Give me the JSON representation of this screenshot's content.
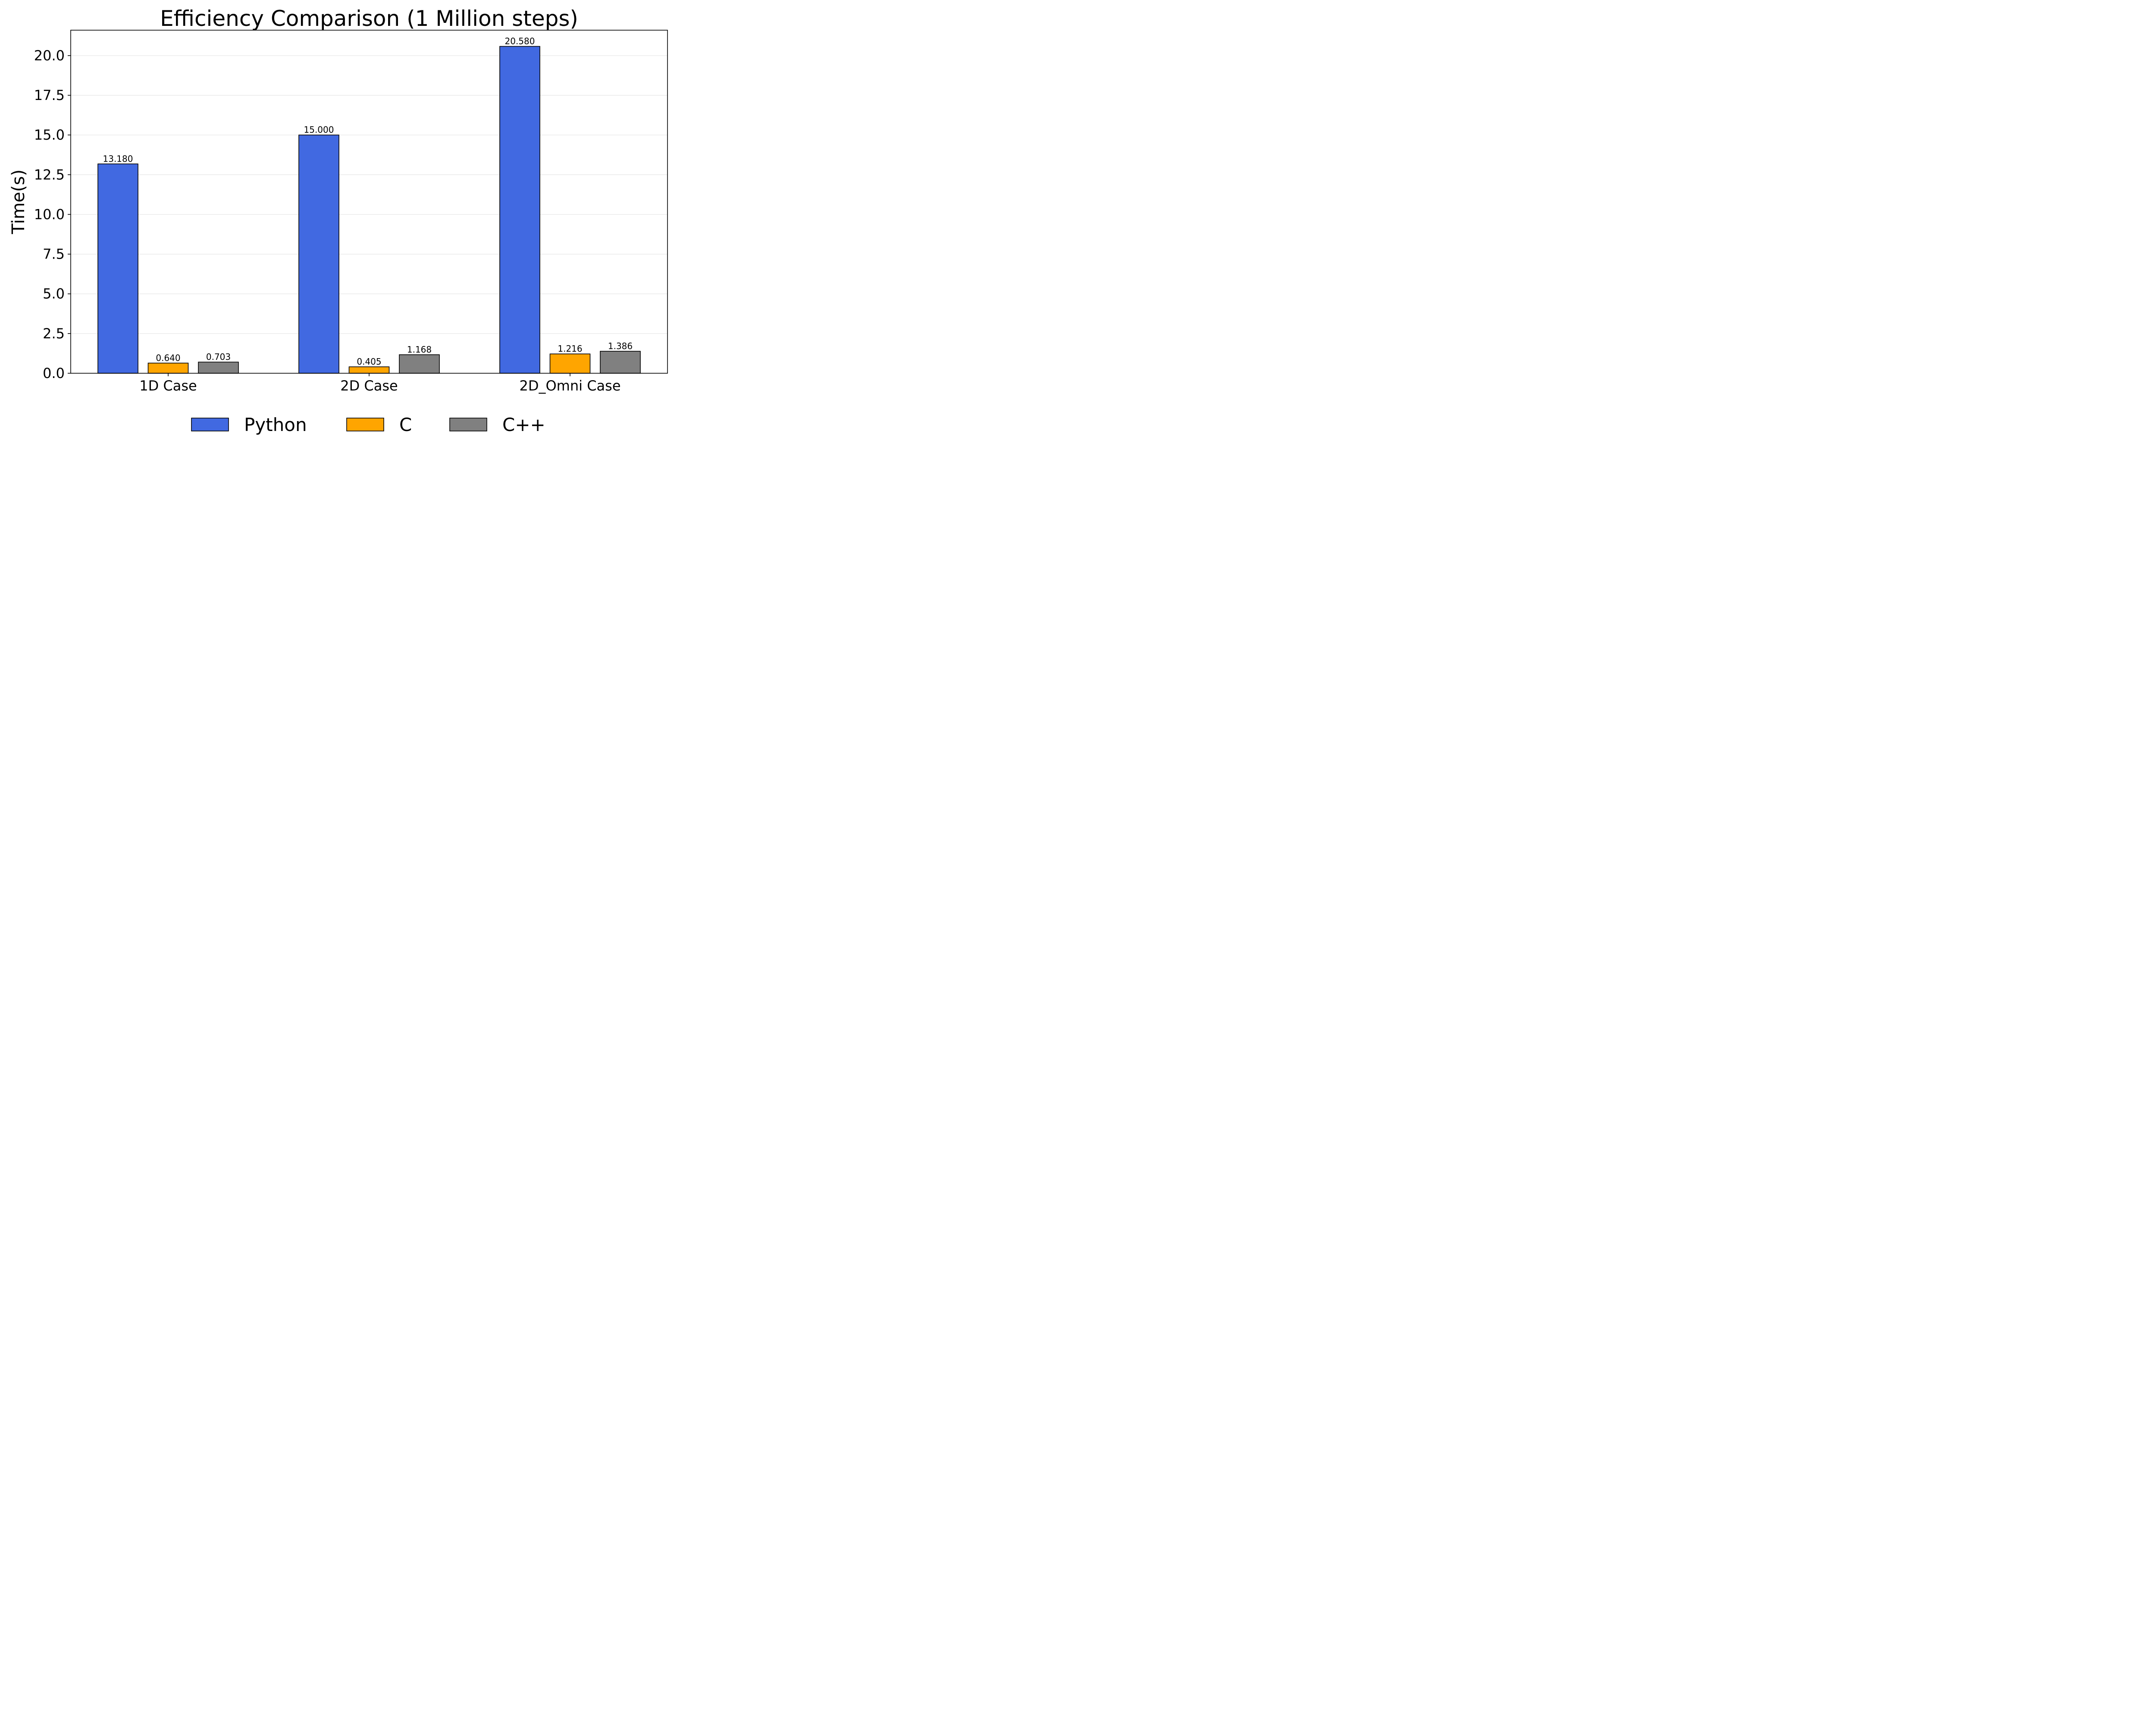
{
  "chart_data": {
    "type": "bar",
    "title": "Efficiency Comparison (1 Million steps)",
    "xlabel": "",
    "ylabel": "Time(s)",
    "categories": [
      "1D Case",
      "2D Case",
      "2D_Omni Case"
    ],
    "series": [
      {
        "name": "Python",
        "values": [
          13.18,
          15.0,
          20.58
        ],
        "labels": [
          "13.180",
          "15.000",
          "20.580"
        ],
        "color": "#4169e1"
      },
      {
        "name": "C",
        "values": [
          0.64,
          0.405,
          1.216
        ],
        "labels": [
          "0.640",
          "0.405",
          "1.216"
        ],
        "color": "#ffa500"
      },
      {
        "name": "C++",
        "values": [
          0.703,
          1.168,
          1.386
        ],
        "labels": [
          "0.703",
          "1.168",
          "1.386"
        ],
        "color": "#808080"
      }
    ],
    "ylim": [
      0,
      21.6
    ],
    "yticks": [
      "0.0",
      "2.5",
      "5.0",
      "7.5",
      "10.0",
      "12.5",
      "15.0",
      "17.5",
      "20.0"
    ],
    "grid": "horizontal",
    "legend": "bottom-center"
  }
}
